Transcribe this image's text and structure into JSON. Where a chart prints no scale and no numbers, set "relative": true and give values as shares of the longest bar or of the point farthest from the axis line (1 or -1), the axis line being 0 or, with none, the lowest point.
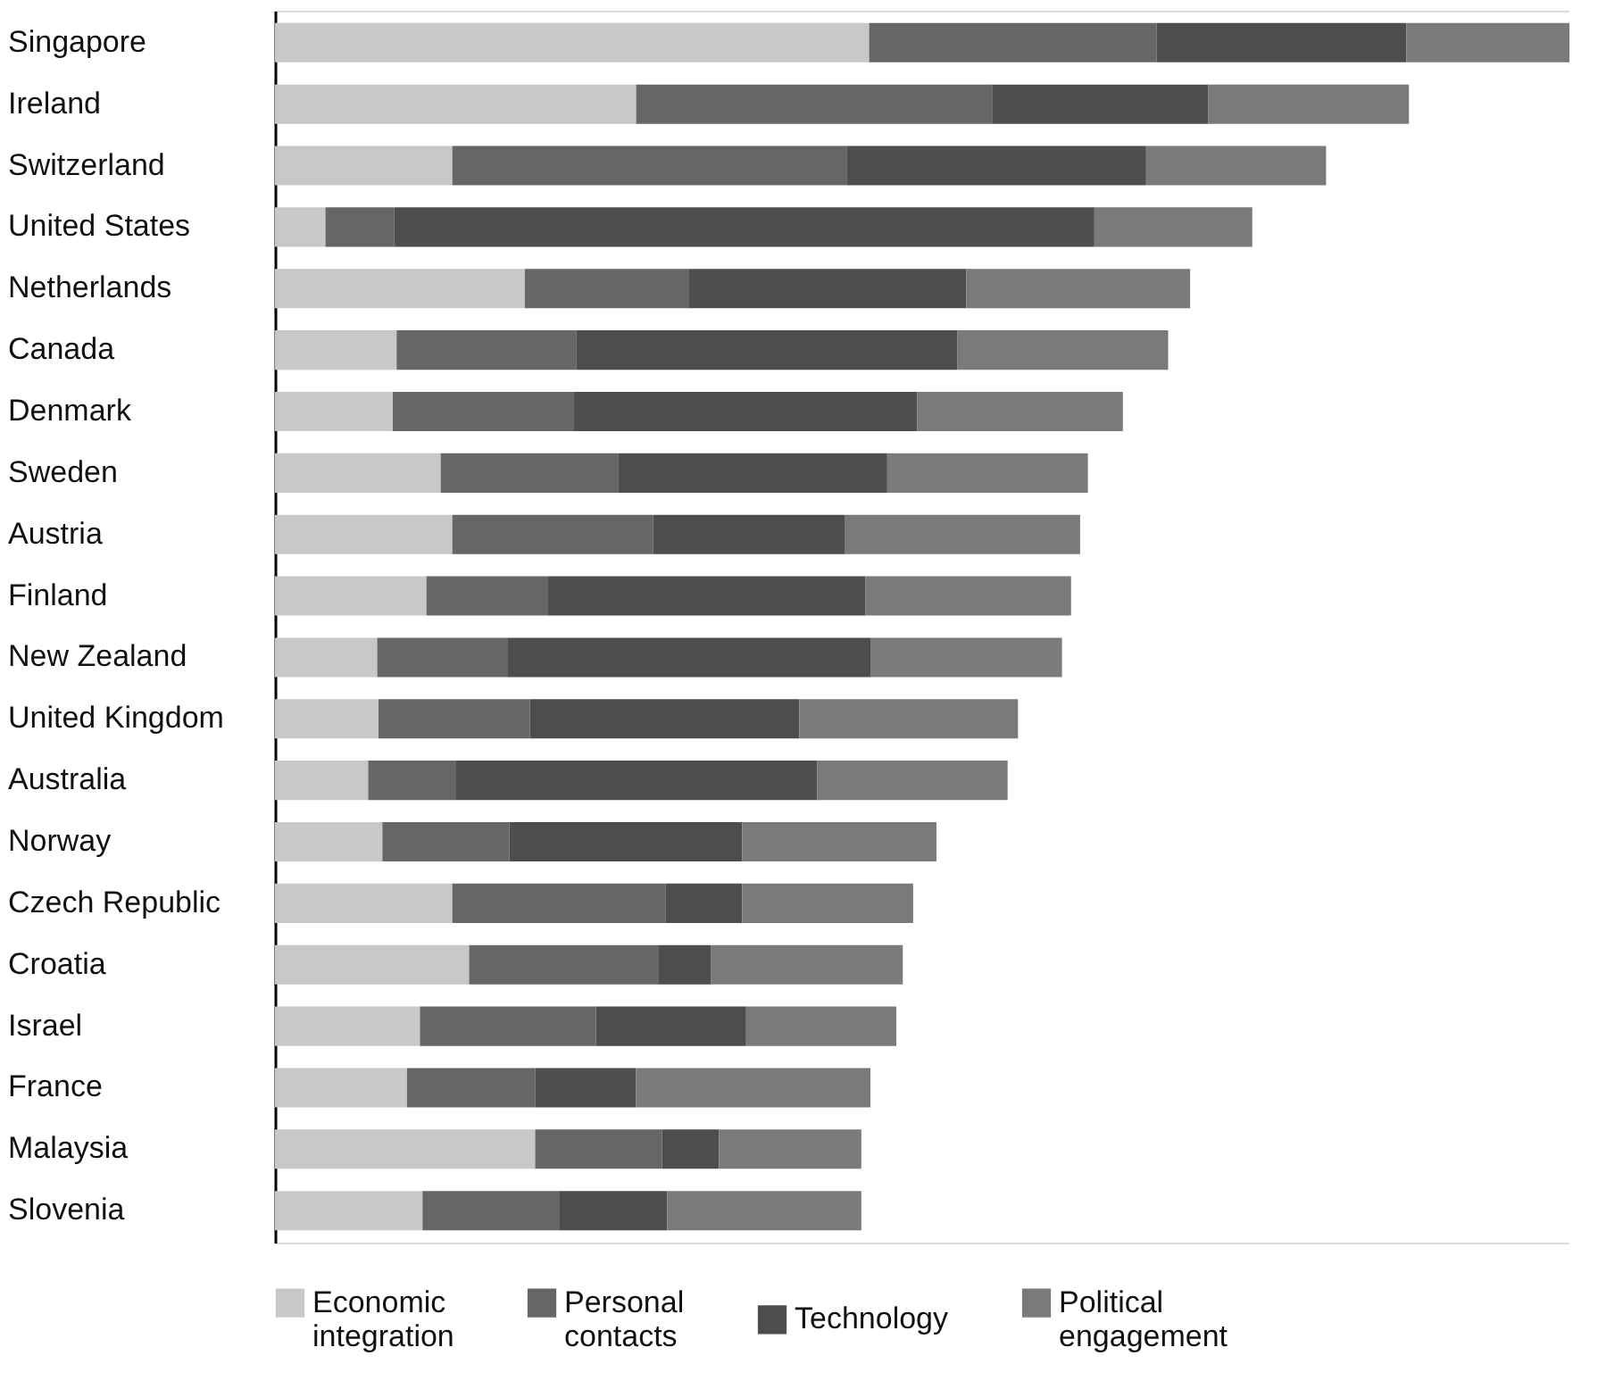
{
  "chart_data": {
    "type": "bar",
    "orientation": "horizontal",
    "stacked": true,
    "relative": true,
    "legend": "bottom",
    "categories": [
      "Singapore",
      "Ireland",
      "Switzerland",
      "United States",
      "Netherlands",
      "Canada",
      "Denmark",
      "Sweden",
      "Austria",
      "Finland",
      "New Zealand",
      "United Kingdom",
      "Australia",
      "Norway",
      "Czech Republic",
      "Croatia",
      "Israel",
      "France",
      "Malaysia",
      "Slovenia"
    ],
    "series": [
      {
        "name": "Economic integration",
        "color": "#c8c8c8",
        "values": [
          0.459,
          0.279,
          0.137,
          0.039,
          0.193,
          0.094,
          0.091,
          0.128,
          0.137,
          0.117,
          0.079,
          0.08,
          0.072,
          0.083,
          0.137,
          0.15,
          0.112,
          0.102,
          0.201,
          0.114
        ]
      },
      {
        "name": "Personal contacts",
        "color": "#666666",
        "values": [
          0.222,
          0.275,
          0.305,
          0.053,
          0.127,
          0.139,
          0.14,
          0.137,
          0.155,
          0.094,
          0.101,
          0.117,
          0.068,
          0.098,
          0.165,
          0.146,
          0.136,
          0.099,
          0.098,
          0.106
        ]
      },
      {
        "name": "Technology",
        "color": "#4d4d4d",
        "values": [
          0.193,
          0.167,
          0.231,
          0.541,
          0.214,
          0.294,
          0.265,
          0.208,
          0.148,
          0.245,
          0.28,
          0.208,
          0.279,
          0.18,
          0.059,
          0.041,
          0.116,
          0.078,
          0.044,
          0.083
        ]
      },
      {
        "name": "Political engagement",
        "color": "#7a7a7a",
        "values": [
          0.126,
          0.155,
          0.139,
          0.122,
          0.173,
          0.163,
          0.159,
          0.155,
          0.182,
          0.159,
          0.148,
          0.169,
          0.147,
          0.15,
          0.132,
          0.148,
          0.116,
          0.181,
          0.11,
          0.15
        ]
      }
    ]
  }
}
